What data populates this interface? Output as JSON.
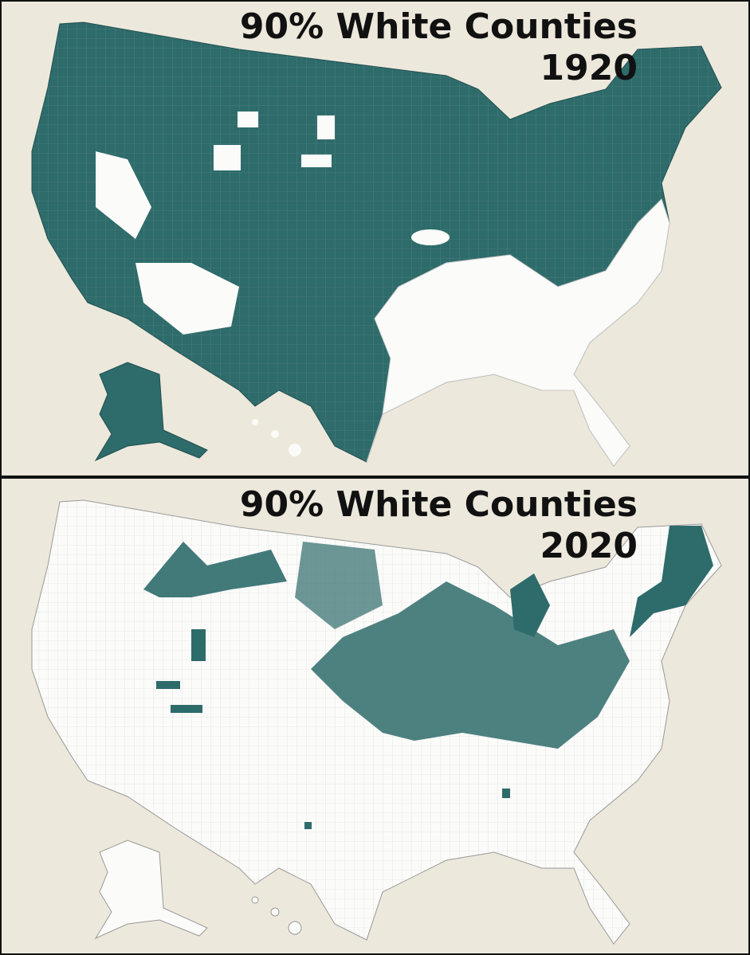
{
  "panels": [
    {
      "title": "90% White Counties",
      "year": "1920"
    },
    {
      "title": "90% White Counties",
      "year": "2020"
    }
  ]
}
